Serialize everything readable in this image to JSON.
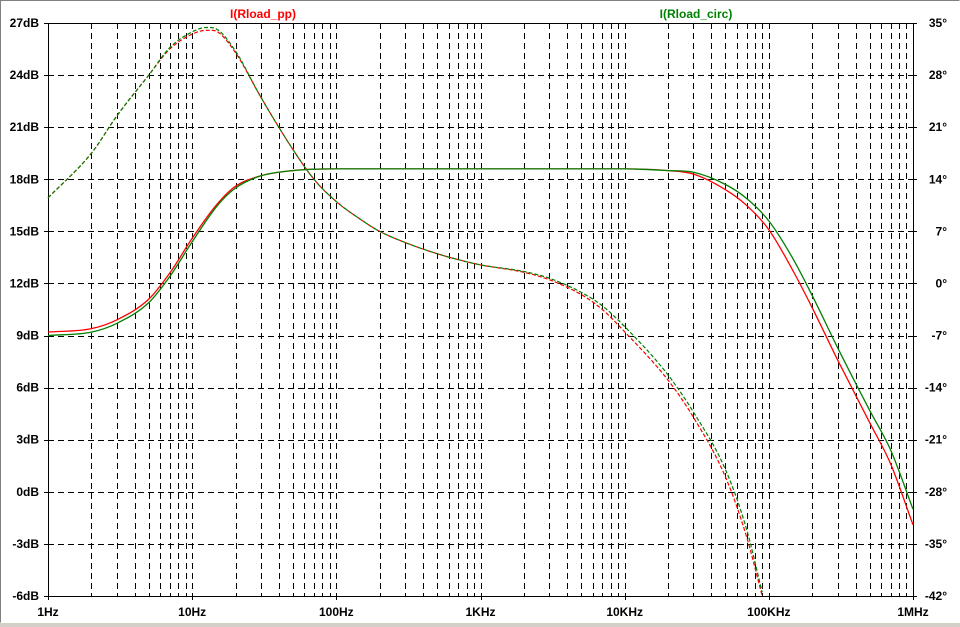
{
  "chart_data": {
    "type": "line",
    "x_scale": "log",
    "xlim_hz": [
      1,
      1000000
    ],
    "x_ticks": [
      {
        "v": 1,
        "label": "1Hz"
      },
      {
        "v": 10,
        "label": "10Hz"
      },
      {
        "v": 100,
        "label": "100Hz"
      },
      {
        "v": 1000,
        "label": "1KHz"
      },
      {
        "v": 10000,
        "label": "10KHz"
      },
      {
        "v": 100000,
        "label": "100KHz"
      },
      {
        "v": 1000000,
        "label": "1MHz"
      }
    ],
    "y_left": {
      "unit": "dB",
      "ylim": [
        -6,
        27
      ],
      "ticks": [
        "27dB",
        "24dB",
        "21dB",
        "18dB",
        "15dB",
        "12dB",
        "9dB",
        "6dB",
        "3dB",
        "0dB",
        "-3dB",
        "-6dB"
      ],
      "tick_values": [
        27,
        24,
        21,
        18,
        15,
        12,
        9,
        6,
        3,
        0,
        -3,
        -6
      ]
    },
    "y_right": {
      "unit": "deg",
      "ylim": [
        -42,
        35
      ],
      "ticks": [
        "35°",
        "28°",
        "21°",
        "14°",
        "7°",
        "0°",
        "-7°",
        "-14°",
        "-21°",
        "-28°",
        "-35°",
        "-42°"
      ],
      "tick_values": [
        35,
        28,
        21,
        14,
        7,
        0,
        -7,
        -14,
        -21,
        -28,
        -35,
        -42
      ]
    },
    "grid": true,
    "legend_placement": "top",
    "series": [
      {
        "name": "I(Rload_pp)",
        "color": "#ff0000",
        "magnitude_db": [
          [
            1,
            9.2
          ],
          [
            2,
            9.4
          ],
          [
            3,
            9.9
          ],
          [
            5,
            11.1
          ],
          [
            7,
            12.6
          ],
          [
            10,
            14.6
          ],
          [
            15,
            16.6
          ],
          [
            20,
            17.6
          ],
          [
            30,
            18.2
          ],
          [
            50,
            18.5
          ],
          [
            100,
            18.6
          ],
          [
            1000,
            18.6
          ],
          [
            10000,
            18.6
          ],
          [
            20000,
            18.5
          ],
          [
            30000,
            18.3
          ],
          [
            50000,
            17.4
          ],
          [
            70000,
            16.5
          ],
          [
            100000,
            15.1
          ],
          [
            150000,
            12.6
          ],
          [
            200000,
            10.6
          ],
          [
            300000,
            7.6
          ],
          [
            500000,
            4.0
          ],
          [
            700000,
            1.6
          ],
          [
            1000000,
            -1.9
          ]
        ],
        "phase_deg": [
          [
            1,
            11.5
          ],
          [
            2,
            17.5
          ],
          [
            3,
            22.5
          ],
          [
            5,
            28
          ],
          [
            7,
            31.5
          ],
          [
            10,
            33.5
          ],
          [
            12.5,
            34
          ],
          [
            15,
            33.8
          ],
          [
            20,
            31
          ],
          [
            30,
            25
          ],
          [
            50,
            18
          ],
          [
            70,
            14
          ],
          [
            100,
            11
          ],
          [
            150,
            8.5
          ],
          [
            200,
            7
          ],
          [
            300,
            5.5
          ],
          [
            500,
            4
          ],
          [
            700,
            3.2
          ],
          [
            1000,
            2.5
          ],
          [
            2000,
            1.5
          ],
          [
            3000,
            0.5
          ],
          [
            5000,
            -1.5
          ],
          [
            7000,
            -3.5
          ],
          [
            10000,
            -6.5
          ],
          [
            20000,
            -13
          ],
          [
            30000,
            -18
          ],
          [
            50000,
            -26
          ],
          [
            70000,
            -34
          ],
          [
            90000,
            -42
          ]
        ]
      },
      {
        "name": "I(Rload_circ)",
        "color": "#008000",
        "magnitude_db": [
          [
            1,
            9.0
          ],
          [
            2,
            9.2
          ],
          [
            3,
            9.7
          ],
          [
            5,
            10.9
          ],
          [
            7,
            12.4
          ],
          [
            10,
            14.4
          ],
          [
            15,
            16.5
          ],
          [
            20,
            17.5
          ],
          [
            30,
            18.2
          ],
          [
            50,
            18.5
          ],
          [
            100,
            18.6
          ],
          [
            1000,
            18.6
          ],
          [
            10000,
            18.6
          ],
          [
            20000,
            18.5
          ],
          [
            30000,
            18.4
          ],
          [
            50000,
            17.7
          ],
          [
            70000,
            16.9
          ],
          [
            100000,
            15.6
          ],
          [
            150000,
            13.3
          ],
          [
            200000,
            11.3
          ],
          [
            300000,
            8.3
          ],
          [
            500000,
            4.7
          ],
          [
            700000,
            2.4
          ],
          [
            1000000,
            -1.0
          ]
        ],
        "phase_deg": [
          [
            1,
            11.5
          ],
          [
            2,
            17.5
          ],
          [
            3,
            22.5
          ],
          [
            5,
            28
          ],
          [
            7,
            31.7
          ],
          [
            10,
            33.8
          ],
          [
            12.5,
            34.4
          ],
          [
            15,
            34.1
          ],
          [
            20,
            31.2
          ],
          [
            30,
            25
          ],
          [
            50,
            18
          ],
          [
            70,
            14
          ],
          [
            100,
            11
          ],
          [
            150,
            8.5
          ],
          [
            200,
            7
          ],
          [
            300,
            5.5
          ],
          [
            500,
            4
          ],
          [
            700,
            3.2
          ],
          [
            1000,
            2.5
          ],
          [
            2000,
            1.6
          ],
          [
            3000,
            0.7
          ],
          [
            5000,
            -1.2
          ],
          [
            7000,
            -3.0
          ],
          [
            10000,
            -5.8
          ],
          [
            20000,
            -12.3
          ],
          [
            30000,
            -17.3
          ],
          [
            50000,
            -25
          ],
          [
            70000,
            -33
          ],
          [
            90000,
            -41.5
          ]
        ]
      }
    ]
  }
}
